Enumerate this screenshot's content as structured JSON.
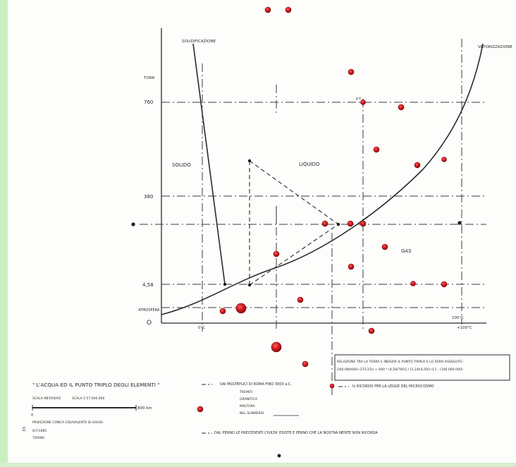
{
  "diagram": {
    "title": "\" L'ACQUA ED IL PUNTO TRIPLO DEGLI ELEMENTI \"",
    "region_labels": {
      "solid": "SOLIDO",
      "liquid": "LIQUIDO",
      "gas": "GAS"
    },
    "curve_labels": {
      "solidification": "SOLIDIFICAZIONE",
      "vaporization": "VAPORIZZAZIONE"
    },
    "y_axis": {
      "unit": "TORR",
      "ticks": [
        "760",
        "380",
        "4,58",
        "ATMOSFERA"
      ],
      "origin": "O"
    },
    "x_axis": {
      "ticks": [
        "0°C",
        "100°C",
        "+100°C"
      ]
    },
    "triple_point_marker": "P.T.",
    "box_text": {
      "line1": "RELAZIONE TRA LA TERRA E INERZIA IL PUNTO TRIPLO E LO ZERO ASSOLUTO :",
      "line2": "[(60.08/(640+273,15)) + 600 * (4,58/760)] / (3,14/(4,58)) 0,1 : (100.000.000)"
    },
    "legend": {
      "mod_line": "DAI MOLTEPLICI DI ROMA FINO 3000 a.C.",
      "sub_items": [
        "TREMITI",
        "GRANITICA",
        "MALTORA",
        "NEL SUBMERSI"
      ],
      "microcosmo": "IL RICORDO PER LA LEGGE DEL MICROCOSMO",
      "bottom_note": "DAL PERNO LE PRECEDENTI CIVILTA' ESISTE E PERNO CHE LA NOSTRA MENTE NON RICORDA"
    },
    "scale": {
      "ratio": "SCALA 1:57.000.000",
      "prefix": "SCALA INFERIORE",
      "distance": "800 km",
      "zero": "0",
      "projection": "PROIEZIONE CONICA EQUIVALENTE DI GAUSS",
      "date": "6/7/1985",
      "author": "TIZIANO",
      "page": "33"
    },
    "colors": {
      "paper": "#fdfdfb",
      "ink": "#2a2a2a",
      "dot": "#c8141a",
      "dot_dark": "#1a1a1a",
      "green_band": "#c9efc0"
    }
  }
}
